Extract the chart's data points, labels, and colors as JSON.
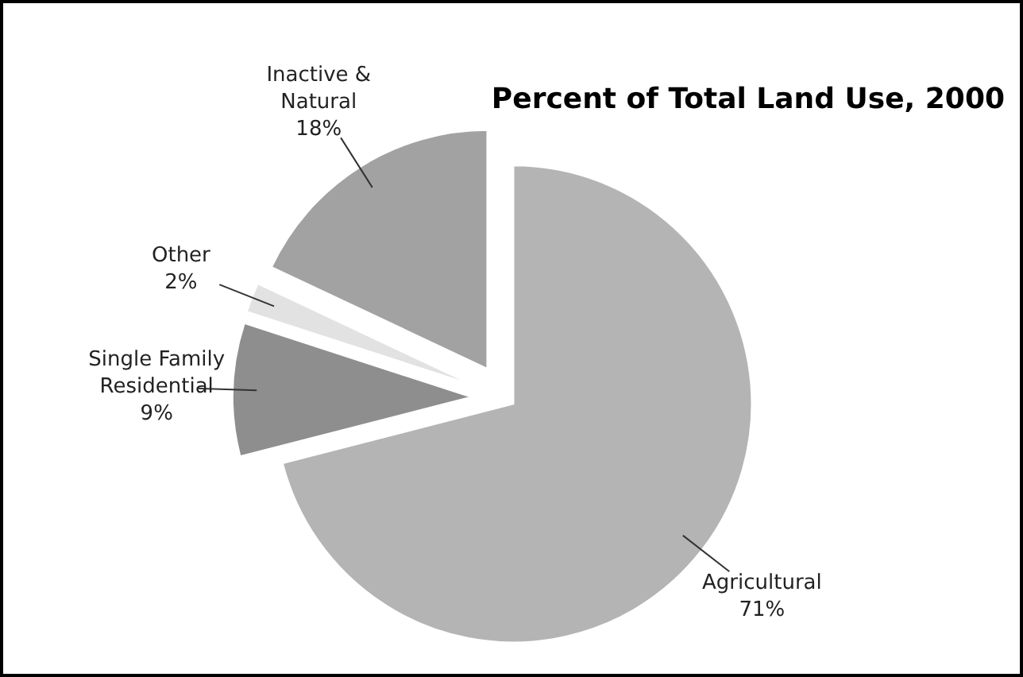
{
  "chart_data": {
    "type": "pie",
    "title": "Percent of Total Land Use, 2000",
    "categories": [
      "Agricultural",
      "Single Family Residential",
      "Other",
      "Inactive & Natural"
    ],
    "values": [
      71,
      9,
      2,
      18
    ],
    "value_labels": [
      "71%",
      "9%",
      "2%",
      "18%"
    ],
    "colors": [
      "#b4b4b4",
      "#8e8e8e",
      "#e2e2e2",
      "#a2a2a2"
    ]
  }
}
